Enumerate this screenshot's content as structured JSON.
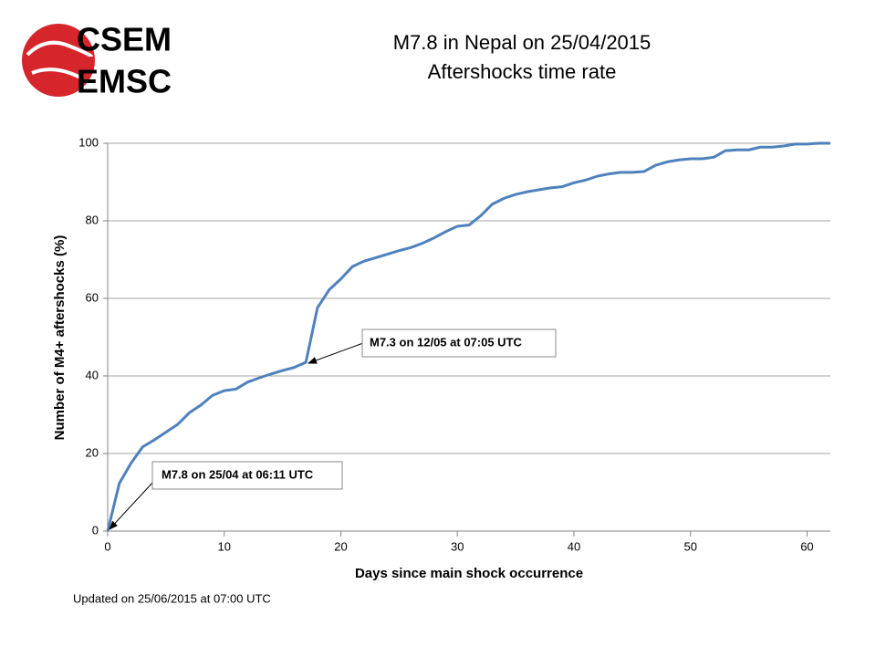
{
  "logo": [
    "CSEM",
    "EMSC"
  ],
  "chart_data": {
    "type": "line",
    "title": "M7.8 in Nepal on 25/04/2015",
    "subtitle": "Aftershocks time rate",
    "x_label": "Days since main shock occurrence",
    "y_label": "Number of M4+ aftershocks (%)",
    "x": [
      0,
      1,
      2,
      3,
      4,
      5,
      6,
      7,
      8,
      9,
      10,
      11,
      12,
      13,
      14,
      15,
      16,
      17,
      18,
      19,
      20,
      21,
      22,
      23,
      24,
      25,
      26,
      27,
      28,
      29,
      30,
      31,
      32,
      33,
      34,
      35,
      36,
      37,
      38,
      39,
      40,
      41,
      42,
      43,
      44,
      45,
      46,
      47,
      48,
      49,
      50,
      51,
      52,
      53,
      54,
      55,
      56,
      57,
      58,
      59,
      60,
      61,
      62
    ],
    "values": [
      0,
      12.3,
      17.5,
      21.7,
      23.5,
      25.5,
      27.5,
      30.5,
      32.5,
      35,
      36.2,
      36.6,
      38.4,
      39.5,
      40.5,
      41.4,
      42.2,
      43.5,
      57.6,
      62.2,
      65,
      68.2,
      69.6,
      70.5,
      71.4,
      72.3,
      73.1,
      74.2,
      75.6,
      77.2,
      78.6,
      78.9,
      81.3,
      84.3,
      85.8,
      86.8,
      87.5,
      88,
      88.5,
      88.8,
      89.8,
      90.5,
      91.5,
      92.1,
      92.5,
      92.5,
      92.7,
      94.3,
      95.2,
      95.7,
      96,
      96,
      96.4,
      98.1,
      98.3,
      98.3,
      99,
      99,
      99.3,
      99.8,
      99.8,
      100,
      100
    ],
    "color": "#4f81bd",
    "xlim": [
      0,
      62
    ],
    "xticks": [
      0,
      10,
      20,
      30,
      40,
      50,
      60
    ],
    "ylim": [
      0,
      100
    ],
    "yticks": [
      0,
      20,
      40,
      60,
      80,
      100
    ],
    "grid": true,
    "annotations": [
      "M7.8 on 25/04 at 06:11 UTC",
      "M7.3 on 12/05 at 07:05 UTC"
    ],
    "footnote": "Updated on 25/06/2015 at 07:00 UTC"
  }
}
